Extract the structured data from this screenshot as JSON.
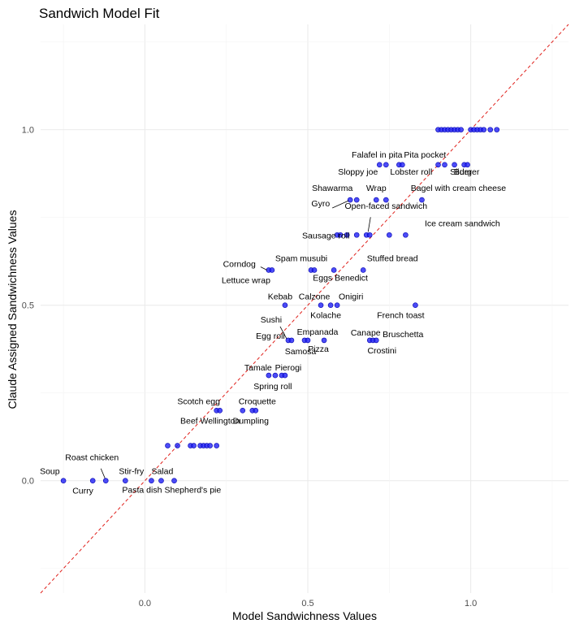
{
  "chart_data": {
    "type": "scatter",
    "title": "Sandwich Model Fit",
    "xlabel": "Model Sandwichness Values",
    "ylabel": "Claude Assigned Sandwichness Values",
    "xlim": [
      -0.32,
      1.3
    ],
    "ylim": [
      -0.32,
      1.3
    ],
    "x_ticks": [
      {
        "v": 0.0,
        "label": "0.0"
      },
      {
        "v": 0.5,
        "label": "0.5"
      },
      {
        "v": 1.0,
        "label": "1.0"
      }
    ],
    "y_ticks": [
      {
        "v": 0.0,
        "label": "0.0"
      },
      {
        "v": 0.5,
        "label": "0.5"
      },
      {
        "v": 1.0,
        "label": "1.0"
      }
    ],
    "grid": true,
    "reference_line": {
      "style": "dashed",
      "color": "#e0201b",
      "slope": 1,
      "intercept": 0
    },
    "points": [
      {
        "x": 0.9,
        "y": 1.0
      },
      {
        "x": 0.91,
        "y": 1.0
      },
      {
        "x": 0.92,
        "y": 1.0
      },
      {
        "x": 0.93,
        "y": 1.0
      },
      {
        "x": 0.94,
        "y": 1.0
      },
      {
        "x": 0.95,
        "y": 1.0
      },
      {
        "x": 0.96,
        "y": 1.0
      },
      {
        "x": 0.97,
        "y": 1.0
      },
      {
        "x": 1.0,
        "y": 1.0
      },
      {
        "x": 1.01,
        "y": 1.0
      },
      {
        "x": 1.02,
        "y": 1.0
      },
      {
        "x": 1.03,
        "y": 1.0
      },
      {
        "x": 1.04,
        "y": 1.0
      },
      {
        "x": 1.06,
        "y": 1.0
      },
      {
        "x": 1.08,
        "y": 1.0
      },
      {
        "x": 0.72,
        "y": 0.9,
        "label": "Falafel in pita"
      },
      {
        "x": 0.74,
        "y": 0.9,
        "label": "Sloppy joe"
      },
      {
        "x": 0.78,
        "y": 0.9,
        "label": "Lobster roll"
      },
      {
        "x": 0.79,
        "y": 0.9,
        "label": "Pita pocket"
      },
      {
        "x": 0.9,
        "y": 0.9
      },
      {
        "x": 0.92,
        "y": 0.9,
        "label": "Slider"
      },
      {
        "x": 0.95,
        "y": 0.9
      },
      {
        "x": 0.98,
        "y": 0.9,
        "label": "Burger"
      },
      {
        "x": 0.99,
        "y": 0.9
      },
      {
        "x": 0.63,
        "y": 0.8,
        "label": "Gyro"
      },
      {
        "x": 0.65,
        "y": 0.8,
        "label": "Shawarma"
      },
      {
        "x": 0.71,
        "y": 0.8,
        "label": "Wrap"
      },
      {
        "x": 0.74,
        "y": 0.8,
        "label": "Open-faced sandwich"
      },
      {
        "x": 0.85,
        "y": 0.8,
        "label": "Bagel with cream cheese"
      },
      {
        "x": 0.59,
        "y": 0.7
      },
      {
        "x": 0.6,
        "y": 0.7
      },
      {
        "x": 0.62,
        "y": 0.7
      },
      {
        "x": 0.65,
        "y": 0.7
      },
      {
        "x": 0.68,
        "y": 0.7
      },
      {
        "x": 0.69,
        "y": 0.7,
        "label": "Sausage roll"
      },
      {
        "x": 0.75,
        "y": 0.7
      },
      {
        "x": 0.8,
        "y": 0.7,
        "label": "Ice cream sandwich"
      },
      {
        "x": 0.38,
        "y": 0.6,
        "label": "Corndog"
      },
      {
        "x": 0.39,
        "y": 0.6,
        "label": "Lettuce wrap"
      },
      {
        "x": 0.51,
        "y": 0.6,
        "label": "Spam musubi"
      },
      {
        "x": 0.52,
        "y": 0.6
      },
      {
        "x": 0.58,
        "y": 0.6,
        "label": "Eggs Benedict"
      },
      {
        "x": 0.67,
        "y": 0.6,
        "label": "Stuffed bread"
      },
      {
        "x": 0.43,
        "y": 0.5,
        "label": "Kebab"
      },
      {
        "x": 0.54,
        "y": 0.5,
        "label": "Calzone"
      },
      {
        "x": 0.57,
        "y": 0.5,
        "label": "Kolache"
      },
      {
        "x": 0.59,
        "y": 0.5,
        "label": "Onigiri"
      },
      {
        "x": 0.83,
        "y": 0.5,
        "label": "French toast"
      },
      {
        "x": 0.44,
        "y": 0.4,
        "label": "Sushi"
      },
      {
        "x": 0.45,
        "y": 0.4,
        "label": "Egg roll"
      },
      {
        "x": 0.49,
        "y": 0.4,
        "label": "Samosa"
      },
      {
        "x": 0.5,
        "y": 0.4,
        "label": "Empanada"
      },
      {
        "x": 0.55,
        "y": 0.4,
        "label": "Pizza"
      },
      {
        "x": 0.69,
        "y": 0.4,
        "label": "Canape"
      },
      {
        "x": 0.7,
        "y": 0.4,
        "label": "Crostini"
      },
      {
        "x": 0.71,
        "y": 0.4,
        "label": "Bruschetta"
      },
      {
        "x": 0.38,
        "y": 0.3,
        "label": "Tamale"
      },
      {
        "x": 0.4,
        "y": 0.3,
        "label": "Spring roll"
      },
      {
        "x": 0.42,
        "y": 0.3
      },
      {
        "x": 0.43,
        "y": 0.3,
        "label": "Pierogi"
      },
      {
        "x": 0.22,
        "y": 0.2,
        "label": "Scotch egg"
      },
      {
        "x": 0.23,
        "y": 0.2,
        "label": "Beef Wellington"
      },
      {
        "x": 0.3,
        "y": 0.2,
        "label": "Croquette"
      },
      {
        "x": 0.33,
        "y": 0.2,
        "label": "Dumpling"
      },
      {
        "x": 0.34,
        "y": 0.2
      },
      {
        "x": 0.07,
        "y": 0.1
      },
      {
        "x": 0.1,
        "y": 0.1
      },
      {
        "x": 0.14,
        "y": 0.1
      },
      {
        "x": 0.15,
        "y": 0.1
      },
      {
        "x": 0.17,
        "y": 0.1
      },
      {
        "x": 0.18,
        "y": 0.1
      },
      {
        "x": 0.19,
        "y": 0.1
      },
      {
        "x": 0.2,
        "y": 0.1
      },
      {
        "x": 0.22,
        "y": 0.1
      },
      {
        "x": -0.25,
        "y": 0.0,
        "label": "Soup"
      },
      {
        "x": -0.16,
        "y": 0.0,
        "label": "Curry"
      },
      {
        "x": -0.12,
        "y": 0.0,
        "label": "Roast chicken"
      },
      {
        "x": -0.06,
        "y": 0.0,
        "label": "Stir-fry"
      },
      {
        "x": 0.02,
        "y": 0.0,
        "label": "Pasta dish"
      },
      {
        "x": 0.05,
        "y": 0.0,
        "label": "Salad"
      },
      {
        "x": 0.09,
        "y": 0.0,
        "label": "Shepherd's pie"
      }
    ]
  }
}
